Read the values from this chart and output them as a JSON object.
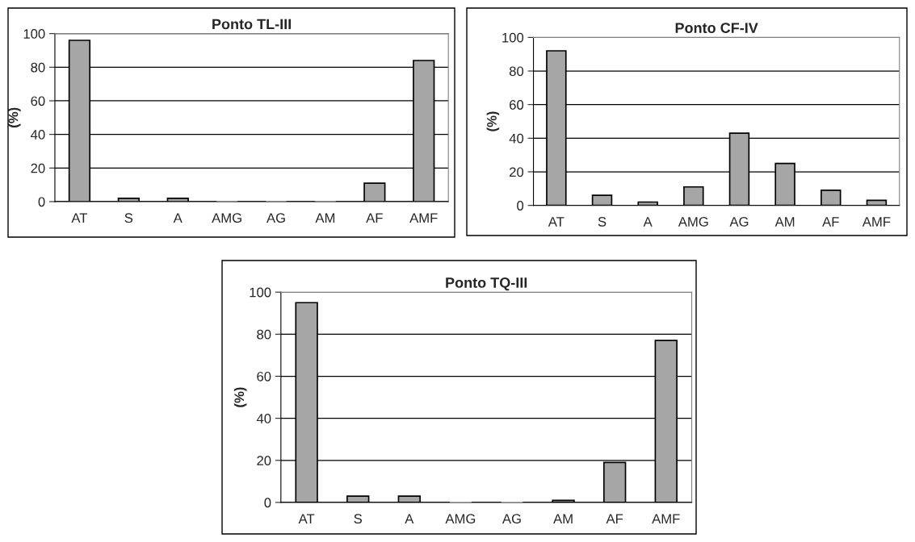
{
  "chart_data": [
    {
      "type": "bar",
      "title": "Ponto TL-III",
      "ylabel": "(%)",
      "categories": [
        "AT",
        "S",
        "A",
        "AMG",
        "AG",
        "AM",
        "AF",
        "AMF"
      ],
      "values": [
        96,
        2,
        2,
        0,
        0,
        0,
        11,
        84
      ],
      "color": "#a6a6a6",
      "ylim": [
        0,
        100
      ],
      "yticks": [
        0,
        20,
        40,
        60,
        80,
        100
      ],
      "grid": "y"
    },
    {
      "type": "bar",
      "title": "Ponto CF-IV",
      "ylabel": "(%)",
      "categories": [
        "AT",
        "S",
        "A",
        "AMG",
        "AG",
        "AM",
        "AF",
        "AMF"
      ],
      "values": [
        92,
        6,
        2,
        11,
        43,
        25,
        9,
        3
      ],
      "color": "#a6a6a6",
      "ylim": [
        0,
        100
      ],
      "yticks": [
        0,
        20,
        40,
        60,
        80,
        100
      ],
      "grid": "y"
    },
    {
      "type": "bar",
      "title": "Ponto TQ-III",
      "ylabel": "(%)",
      "categories": [
        "AT",
        "S",
        "A",
        "AMG",
        "AG",
        "AM",
        "AF",
        "AMF"
      ],
      "values": [
        95,
        3,
        3,
        0,
        0,
        1,
        19,
        77
      ],
      "color": "#a6a6a6",
      "ylim": [
        0,
        100
      ],
      "yticks": [
        0,
        20,
        40,
        60,
        80,
        100
      ],
      "grid": "y"
    }
  ]
}
